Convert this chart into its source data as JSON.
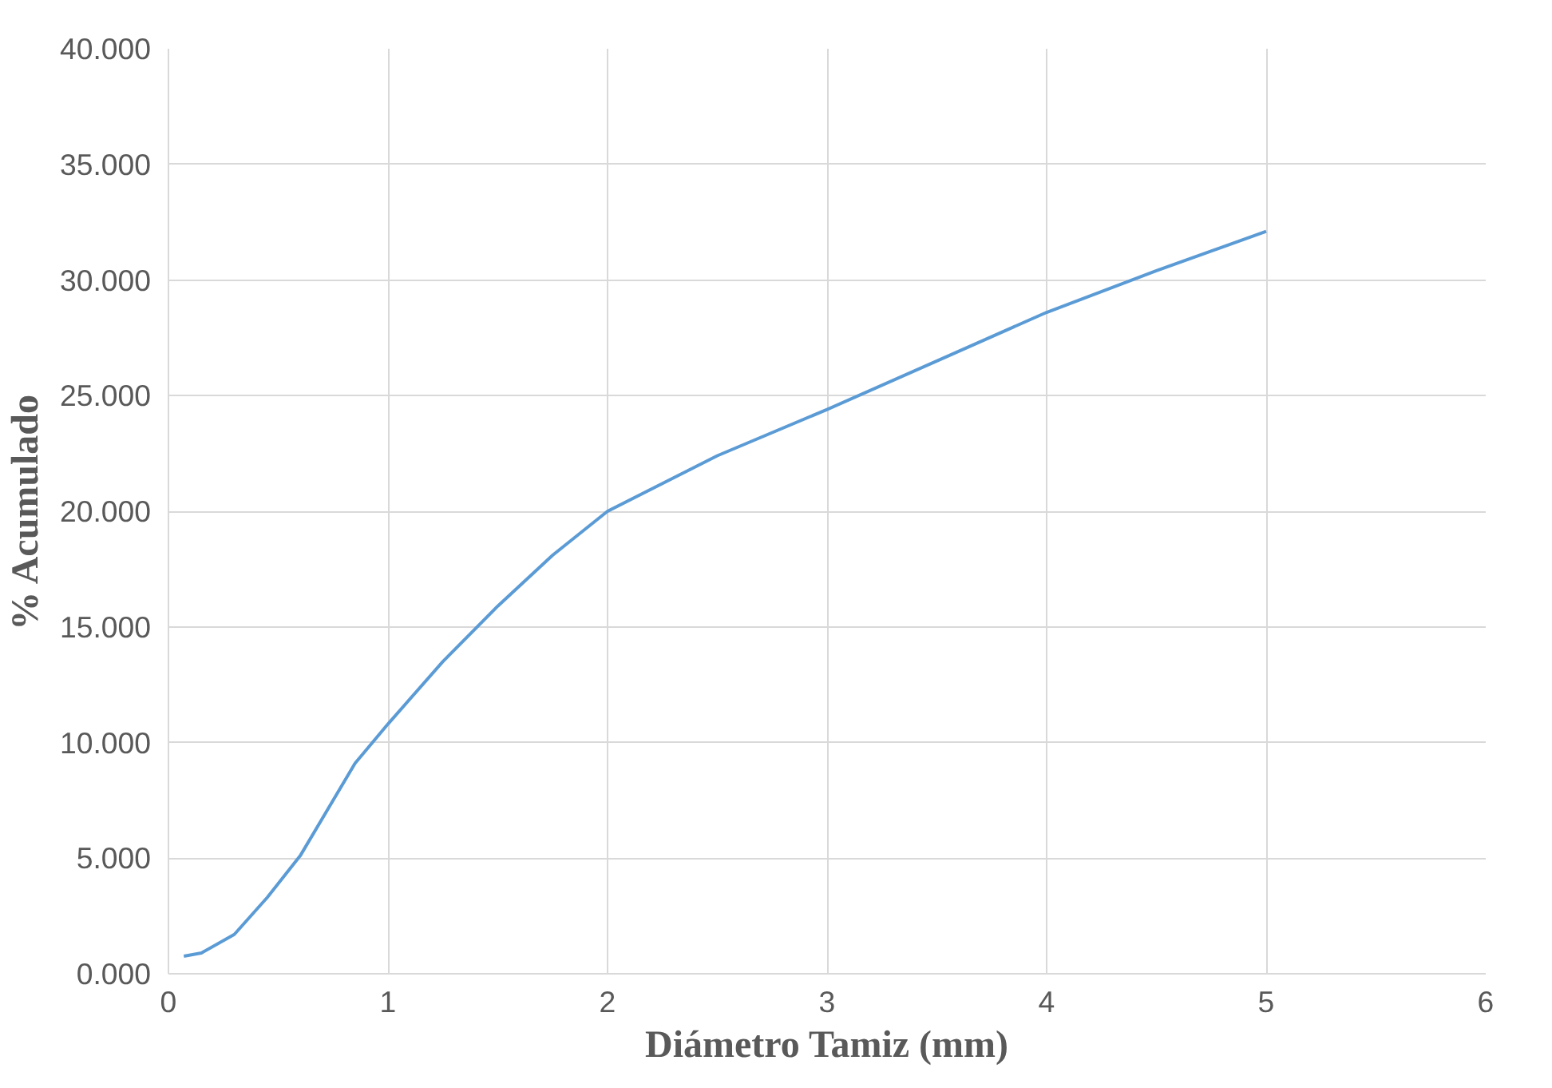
{
  "chart_data": {
    "type": "line",
    "xlabel": "Diámetro Tamiz (mm)",
    "ylabel": "% Acumulado",
    "x": [
      0.07,
      0.15,
      0.3,
      0.45,
      0.6,
      0.85,
      1,
      1.25,
      1.5,
      1.75,
      2,
      2.5,
      3,
      3.5,
      4,
      4.5,
      5
    ],
    "series": [
      {
        "color": "#5b9bd5",
        "values": [
          0.76,
          0.9,
          1.7,
          3.3,
          5.1,
          9.1,
          10.8,
          13.5,
          15.9,
          18.1,
          20.0,
          22.4,
          24.4,
          26.5,
          28.6,
          30.4,
          32.1
        ]
      }
    ],
    "xlim": [
      0,
      6
    ],
    "xticks": [
      0,
      1,
      2,
      3,
      4,
      5,
      6
    ],
    "ylim": [
      0,
      40
    ],
    "yticks": [
      {
        "value": 0,
        "label": "0.000"
      },
      {
        "value": 5,
        "label": "5.000"
      },
      {
        "value": 10,
        "label": "10.000"
      },
      {
        "value": 15,
        "label": "15.000"
      },
      {
        "value": 20,
        "label": "20.000"
      },
      {
        "value": 25,
        "label": "25.000"
      },
      {
        "value": 30,
        "label": "30.000"
      },
      {
        "value": 35,
        "label": "35.000"
      },
      {
        "value": 40,
        "label": "40.000"
      }
    ],
    "grid": true,
    "line_style": "solid"
  }
}
